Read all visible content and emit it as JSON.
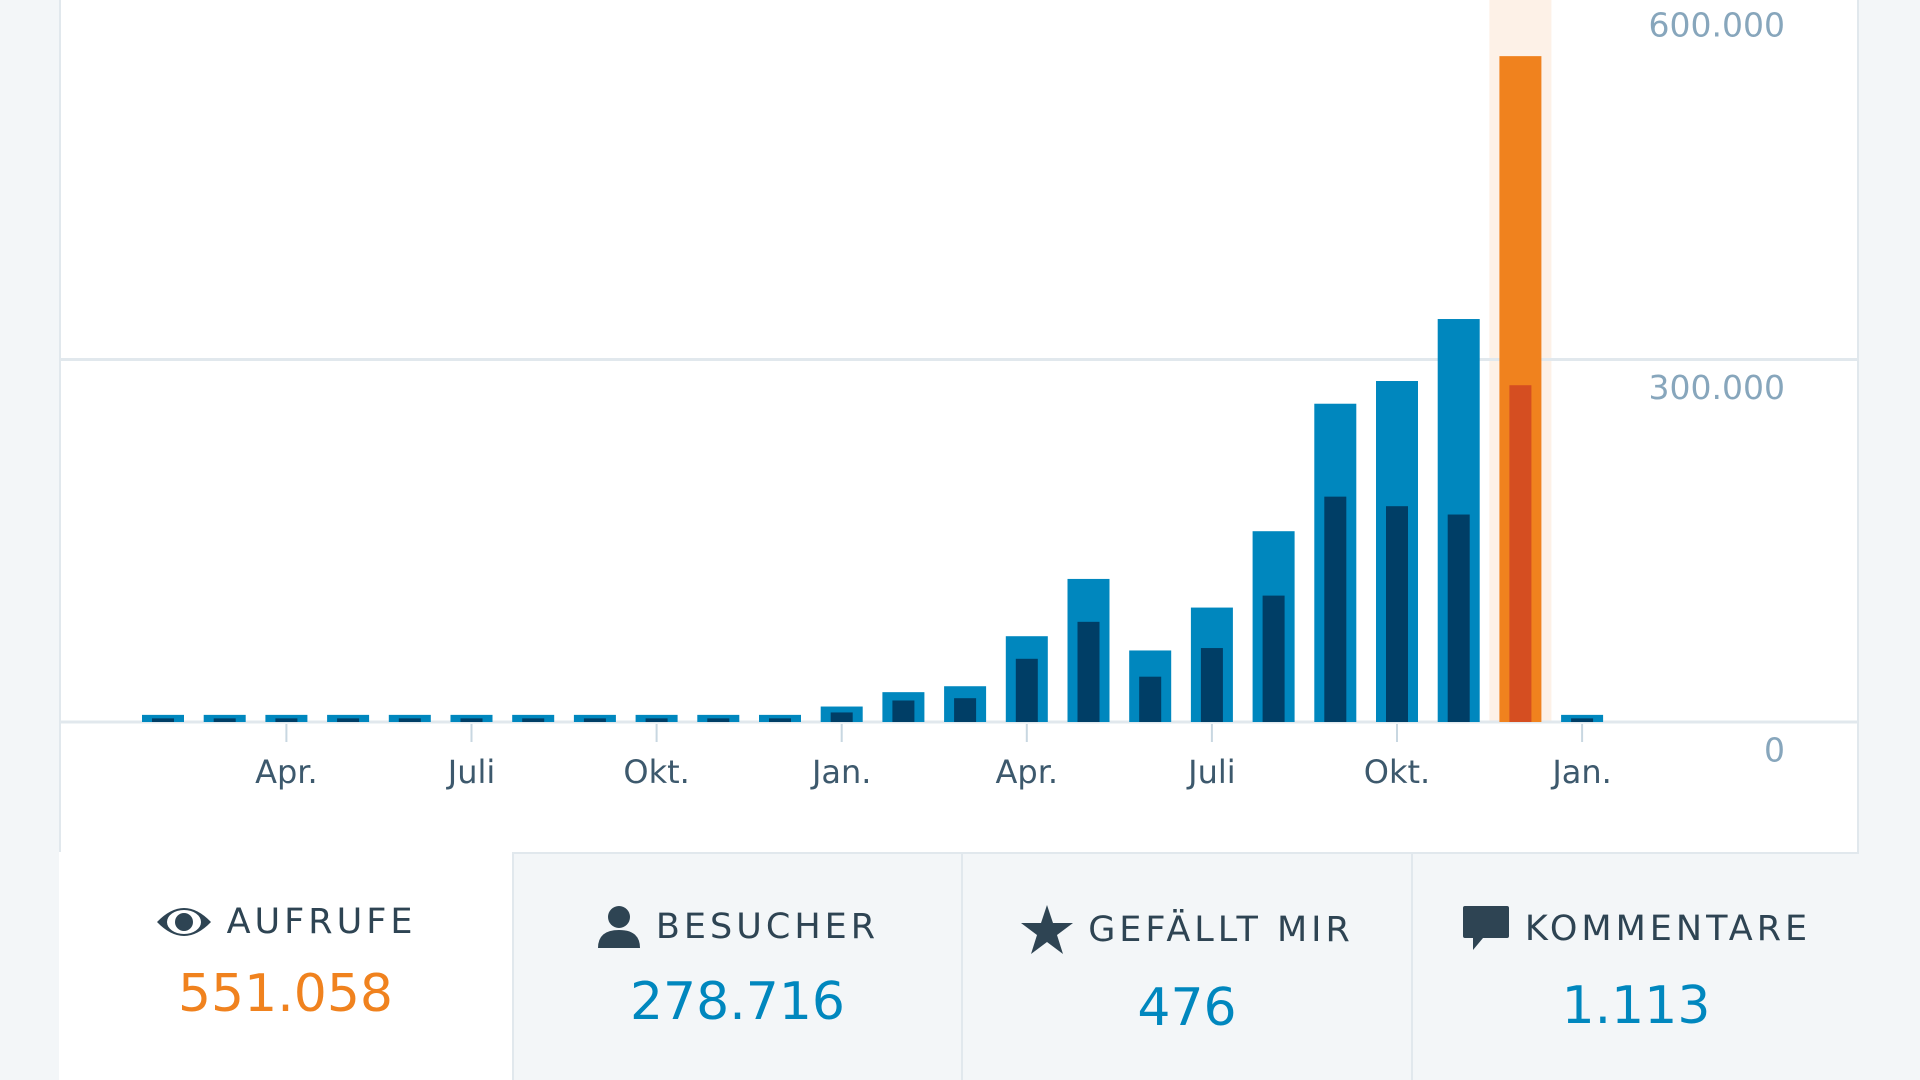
{
  "chart_data": {
    "type": "bar",
    "categories": [
      null,
      null,
      "Apr.",
      null,
      null,
      "Juli",
      null,
      null,
      "Okt.",
      null,
      null,
      "Jan.",
      null,
      null,
      "Apr.",
      null,
      null,
      "Juli",
      null,
      null,
      "Okt.",
      null,
      null,
      "Jan."
    ],
    "series": [
      {
        "name": "Aufrufe",
        "color": "#0087be",
        "highlight_color": "#f0821e",
        "values": [
          5900,
          5900,
          5900,
          5900,
          5900,
          5900,
          5900,
          5900,
          5900,
          5900,
          5900,
          12800,
          24700,
          29600,
          71000,
          118400,
          59200,
          94700,
          157900,
          263400,
          282200,
          333500,
          551058,
          5900
        ]
      },
      {
        "name": "Besucher",
        "color": "#003e66",
        "highlight_color": "#d54e21",
        "values": [
          3000,
          3000,
          3000,
          3000,
          3000,
          3000,
          3000,
          3000,
          3000,
          3000,
          3000,
          7900,
          17800,
          19700,
          52300,
          82900,
          37500,
          61200,
          104600,
          186500,
          178600,
          171700,
          278716,
          3000
        ]
      }
    ],
    "selected_index": 22,
    "ylim": [
      0,
      600000
    ],
    "yticks": [
      0,
      {
        "value": 300000,
        "label": "300.000"
      },
      {
        "value": 600000,
        "label": "600.000"
      }
    ],
    "grid": true
  },
  "tabs": [
    {
      "label": "AUFRUFE",
      "value": "551.058"
    },
    {
      "label": "BESUCHER",
      "value": "278.716"
    },
    {
      "label": "GEFÄLLT MIR",
      "value": "476"
    },
    {
      "label": "KOMMENTARE",
      "value": "1.113"
    }
  ]
}
